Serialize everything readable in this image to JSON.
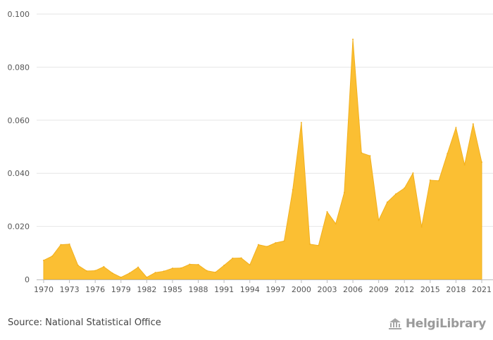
{
  "chart_data": {
    "type": "area",
    "title": "",
    "xlabel": "",
    "ylabel": "",
    "x": [
      1970,
      1971,
      1972,
      1973,
      1974,
      1975,
      1976,
      1977,
      1978,
      1979,
      1980,
      1981,
      1982,
      1983,
      1984,
      1985,
      1986,
      1987,
      1988,
      1989,
      1990,
      1991,
      1992,
      1993,
      1994,
      1995,
      1996,
      1997,
      1998,
      1999,
      2000,
      2001,
      2002,
      2003,
      2004,
      2005,
      2006,
      2007,
      2008,
      2009,
      2010,
      2011,
      2012,
      2013,
      2014,
      2015,
      2016,
      2017,
      2018,
      2019,
      2020,
      2021
    ],
    "values": [
      0.0072,
      0.0088,
      0.0131,
      0.0133,
      0.0053,
      0.0032,
      0.0033,
      0.0048,
      0.0024,
      0.0008,
      0.0024,
      0.0046,
      0.0008,
      0.0026,
      0.0031,
      0.0042,
      0.0043,
      0.0057,
      0.0056,
      0.0033,
      0.0027,
      0.0053,
      0.008,
      0.0081,
      0.0055,
      0.0131,
      0.0124,
      0.0138,
      0.0145,
      0.0338,
      0.0591,
      0.0133,
      0.0128,
      0.0255,
      0.021,
      0.0328,
      0.0905,
      0.0477,
      0.0466,
      0.0223,
      0.0291,
      0.0322,
      0.0344,
      0.0401,
      0.0198,
      0.0374,
      0.0372,
      0.0474,
      0.0572,
      0.0432,
      0.0586,
      0.0442
    ],
    "x_tick_labels": [
      "1970",
      "1973",
      "1976",
      "1979",
      "1982",
      "1985",
      "1988",
      "1991",
      "1994",
      "1997",
      "2000",
      "2003",
      "2006",
      "2009",
      "2012",
      "2015",
      "2018",
      "2021"
    ],
    "y_tick_labels": [
      "0",
      "0.020",
      "0.040",
      "0.060",
      "0.080",
      "0.100"
    ],
    "ylim": [
      0,
      0.1
    ],
    "grid": true,
    "color": "#FBBF33"
  },
  "footer": {
    "source": "Source: National Statistical Office",
    "logo_text": "HelgiLibrary"
  }
}
